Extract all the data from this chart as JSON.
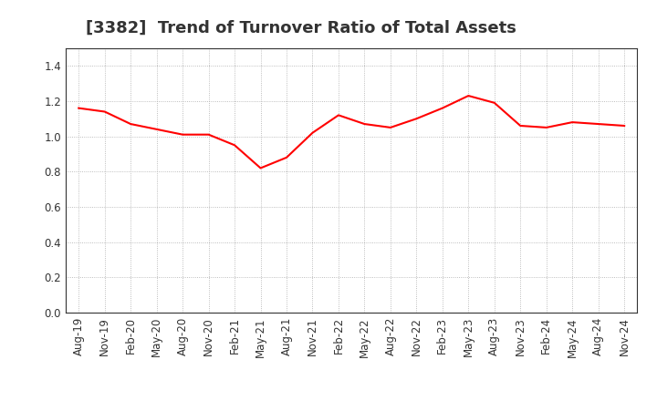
{
  "title": "[3382]  Trend of Turnover Ratio of Total Assets",
  "x_labels": [
    "Aug-19",
    "Nov-19",
    "Feb-20",
    "May-20",
    "Aug-20",
    "Nov-20",
    "Feb-21",
    "May-21",
    "Aug-21",
    "Nov-21",
    "Feb-22",
    "May-22",
    "Aug-22",
    "Nov-22",
    "Feb-23",
    "May-23",
    "Aug-23",
    "Nov-23",
    "Feb-24",
    "May-24",
    "Aug-24",
    "Nov-24"
  ],
  "y_values": [
    1.16,
    1.14,
    1.07,
    1.04,
    1.01,
    1.01,
    0.95,
    0.82,
    0.88,
    1.02,
    1.12,
    1.07,
    1.05,
    1.1,
    1.16,
    1.23,
    1.19,
    1.06,
    1.05,
    1.08,
    1.07,
    1.06
  ],
  "line_color": "#FF0000",
  "line_width": 1.5,
  "ylim": [
    0.0,
    1.5
  ],
  "yticks": [
    0.0,
    0.2,
    0.4,
    0.6,
    0.8,
    1.0,
    1.2,
    1.4
  ],
  "grid_color": "#aaaaaa",
  "bg_color": "#ffffff",
  "title_fontsize": 13,
  "tick_fontsize": 8.5,
  "title_color": "#333333",
  "tick_color": "#333333"
}
